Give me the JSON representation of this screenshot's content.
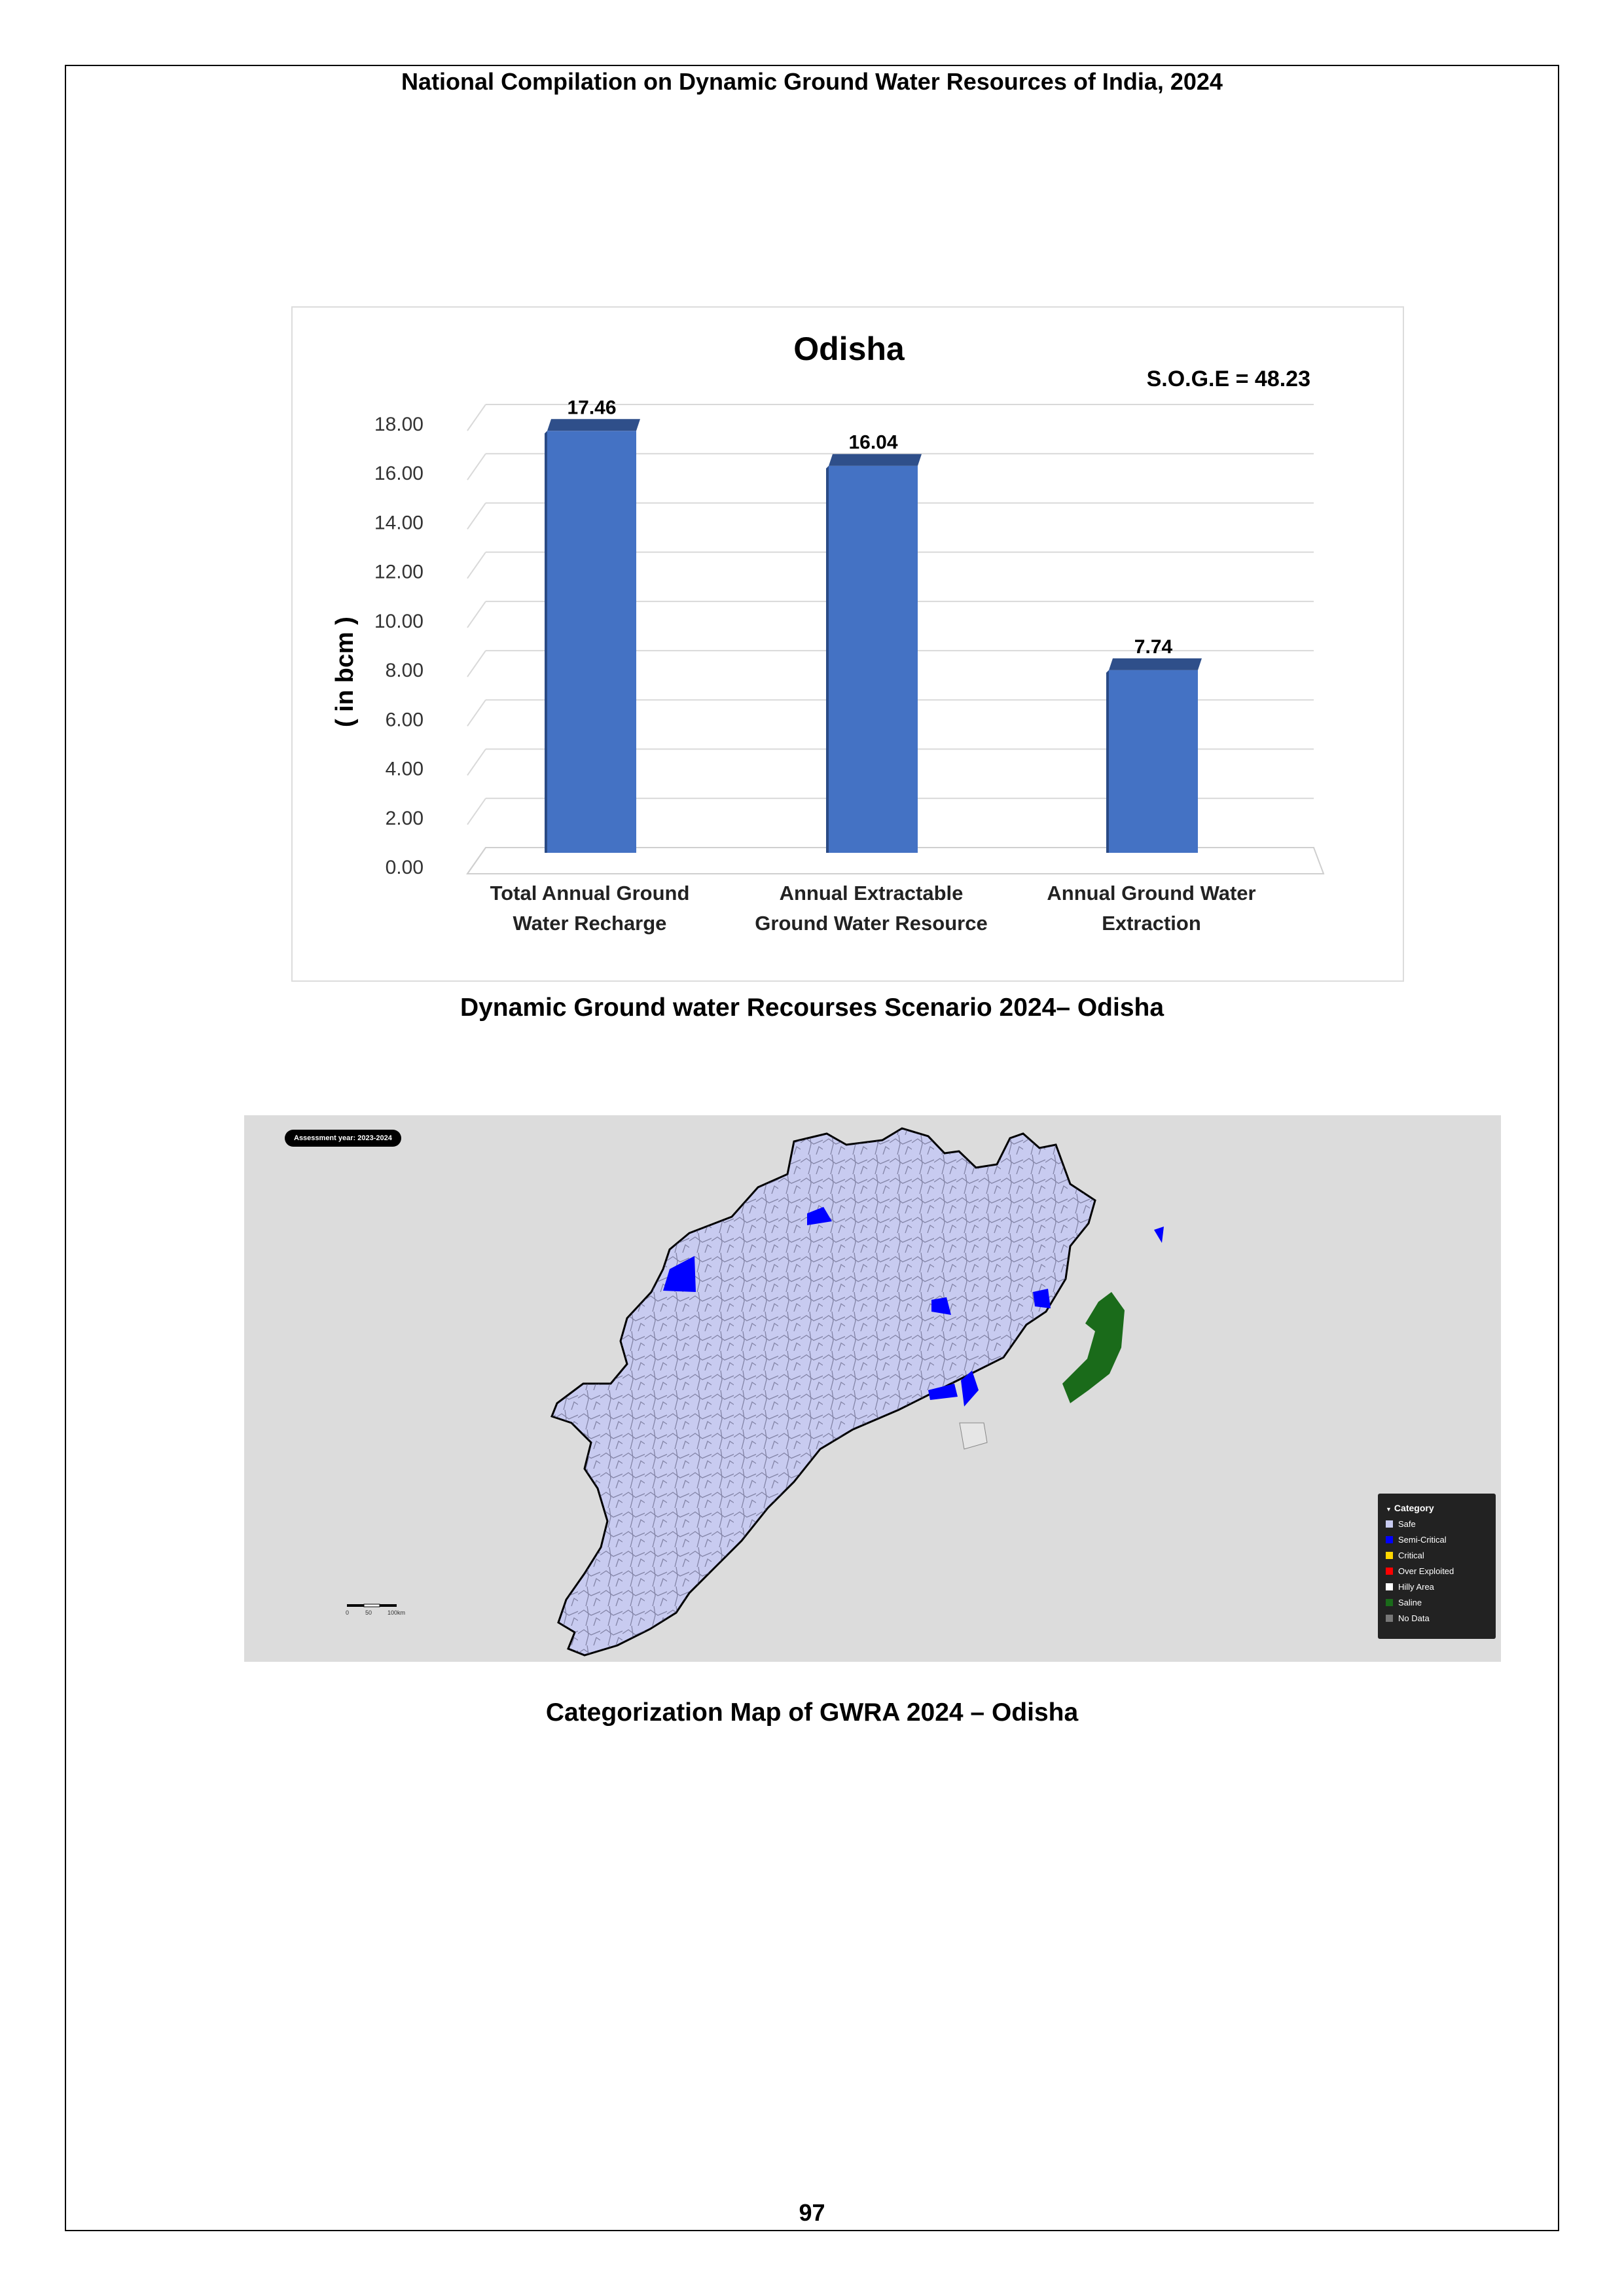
{
  "header": {
    "title": "National Compilation on Dynamic Ground Water Resources of India, 2024"
  },
  "chart_data": {
    "type": "bar",
    "title": "Odisha",
    "annotation": "S.O.G.E = 48.23",
    "ylabel": "( in bcm )",
    "xlabel": "",
    "categories": [
      [
        "Total Annual  Ground",
        "Water Recharge"
      ],
      [
        "Annual Extractable",
        "Ground Water Resource"
      ],
      [
        "Annual Ground Water",
        "Extraction"
      ]
    ],
    "values": [
      17.46,
      16.04,
      7.74
    ],
    "value_labels": [
      "17.46",
      "16.04",
      "7.74"
    ],
    "ylim": [
      0,
      18
    ],
    "yticks": [
      "0.00",
      "2.00",
      "4.00",
      "6.00",
      "8.00",
      "10.00",
      "12.00",
      "14.00",
      "16.00",
      "18.00"
    ],
    "grid": true,
    "bar_color": "#4472c4",
    "bar_top_color": "#2f4f8a"
  },
  "chart_caption": "Dynamic Ground water Recourses Scenario 2024– Odisha",
  "map": {
    "badge": "Assessment year: 2023-2024",
    "legend": {
      "title": "Category",
      "items": [
        {
          "label": "Safe",
          "color": "#c8cbf0"
        },
        {
          "label": "Semi-Critical",
          "color": "#0000ff"
        },
        {
          "label": "Critical",
          "color": "#ffd700"
        },
        {
          "label": "Over Exploited",
          "color": "#ff0000"
        },
        {
          "label": "Hilly Area",
          "color": "#ffffff"
        },
        {
          "label": "Saline",
          "color": "#1a6b1a"
        },
        {
          "label": "No Data",
          "color": "#777777"
        }
      ]
    },
    "scale": {
      "ticks": [
        "0",
        "50",
        "100km"
      ]
    }
  },
  "map_caption": "Categorization Map of GWRA 2024 – Odisha",
  "page_number": "97"
}
